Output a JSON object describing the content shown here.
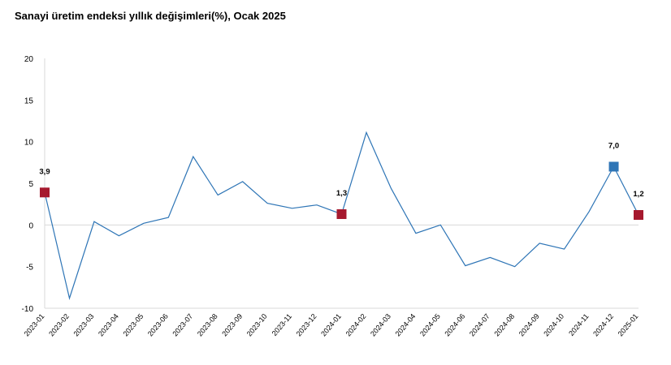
{
  "chart_data": {
    "type": "line",
    "title": "Sanayi üretim endeksi yıllık değişimleri(%), Ocak 2025",
    "xlabel": "",
    "ylabel": "",
    "ylim": [
      -10,
      20
    ],
    "yticks": [
      "20",
      "15",
      "10",
      "5",
      "0",
      "-5",
      "-10"
    ],
    "ytick_values": [
      20,
      15,
      10,
      5,
      0,
      -5,
      -10
    ],
    "grid": false,
    "x": [
      "2023-01",
      "2023-02",
      "2023-03",
      "2023-04",
      "2023-05",
      "2023-06",
      "2023-07",
      "2023-08",
      "2023-09",
      "2023-10",
      "2023-11",
      "2023-12",
      "2024-01",
      "2024-02",
      "2024-03",
      "2024-04",
      "2024-05",
      "2024-06",
      "2024-07",
      "2024-08",
      "2024-09",
      "2024-10",
      "2024-11",
      "2024-12",
      "2025-01"
    ],
    "series": [
      {
        "values": [
          3.9,
          -8.8,
          0.4,
          -1.3,
          0.2,
          0.9,
          8.2,
          3.6,
          5.2,
          2.6,
          2.0,
          2.4,
          1.3,
          11.1,
          4.4,
          -1.0,
          0.0,
          -4.9,
          -3.9,
          -5.0,
          -2.2,
          -2.9,
          1.6,
          7.0,
          1.2
        ]
      }
    ],
    "markers": [
      {
        "index": 0,
        "label": "3,9",
        "color": "#a6192e"
      },
      {
        "index": 12,
        "label": "1,3",
        "color": "#a6192e"
      },
      {
        "index": 23,
        "label": "7,0",
        "color": "#2e75b6"
      },
      {
        "index": 24,
        "label": "1,2",
        "color": "#a6192e"
      }
    ],
    "line_color": "#2e75b6",
    "axis_color": "#d9d9d9"
  }
}
